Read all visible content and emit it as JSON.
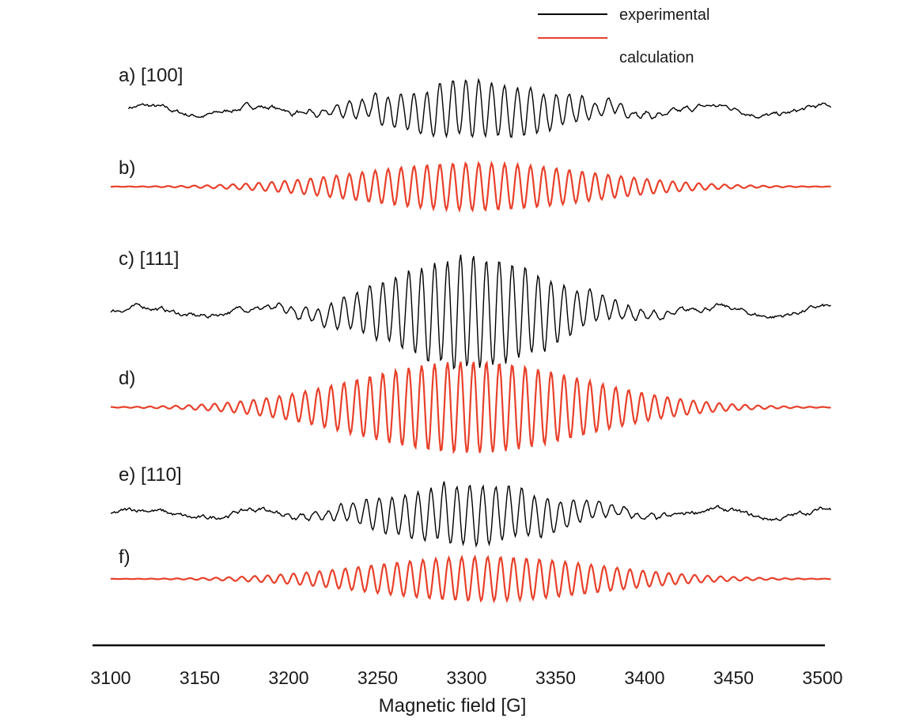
{
  "chart_data": {
    "type": "line",
    "title": "",
    "xlabel": "Magnetic field [G]",
    "ylabel": "",
    "xlim": [
      3100,
      3500
    ],
    "xticks": [
      3100,
      3150,
      3200,
      3250,
      3300,
      3350,
      3400,
      3450,
      3500
    ],
    "grid": false,
    "legend_position": "top-right",
    "legend": [
      {
        "name": "experimental",
        "color": "#000000"
      },
      {
        "name": "calculation",
        "color": "#e8402a"
      }
    ],
    "panels": [
      {
        "label": "a) [100]",
        "kind": "experimental",
        "color": "#000000",
        "x_range": [
          3110,
          3505
        ],
        "center_field": 3305,
        "peak_amplitude": 0.9,
        "line_count": 17
      },
      {
        "label": "b)",
        "kind": "calculation",
        "color": "#e8402a",
        "x_range": [
          3100,
          3505
        ],
        "center_field": 3305,
        "peak_amplitude": 0.7,
        "line_count": 25
      },
      {
        "label": "c) [111]",
        "kind": "experimental",
        "color": "#000000",
        "x_range": [
          3100,
          3505
        ],
        "center_field": 3302,
        "peak_amplitude": 1.0,
        "line_count": 15
      },
      {
        "label": "d)",
        "kind": "calculation",
        "color": "#e8402a",
        "x_range": [
          3100,
          3505
        ],
        "center_field": 3302,
        "peak_amplitude": 1.0,
        "line_count": 27
      },
      {
        "label": "e) [110]",
        "kind": "experimental",
        "color": "#000000",
        "x_range": [
          3100,
          3505
        ],
        "center_field": 3300,
        "peak_amplitude": 0.5,
        "line_count": 20
      },
      {
        "label": "f)",
        "kind": "calculation",
        "color": "#e8402a",
        "x_range": [
          3100,
          3505
        ],
        "center_field": 3310,
        "peak_amplitude": 0.6,
        "line_count": 27
      }
    ]
  }
}
